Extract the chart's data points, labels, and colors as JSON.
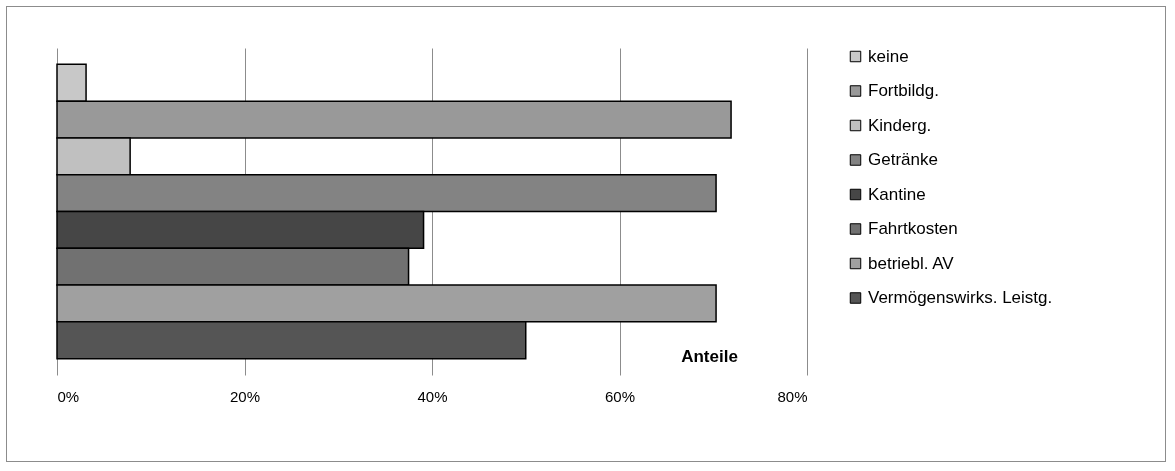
{
  "chart_data": {
    "type": "bar",
    "orientation": "horizontal",
    "categories": [
      null
    ],
    "series": [
      {
        "name": "keine",
        "color": "#c8c8c8",
        "values": [
          3.1
        ]
      },
      {
        "name": "Fortbildg.",
        "color": "#999999",
        "values": [
          71.9
        ]
      },
      {
        "name": "Kinderg.",
        "color": "#c0c0c0",
        "values": [
          7.8
        ]
      },
      {
        "name": "Getränke",
        "color": "#838383",
        "values": [
          70.3
        ]
      },
      {
        "name": "Kantine",
        "color": "#464646",
        "values": [
          39.1
        ]
      },
      {
        "name": "Fahrtkosten",
        "color": "#717171",
        "values": [
          37.5
        ]
      },
      {
        "name": "betriebl. AV",
        "color": "#a0a0a0",
        "values": [
          70.3
        ]
      },
      {
        "name": "Vermögenswirks. Leistg.",
        "color": "#555555",
        "values": [
          50.0
        ]
      }
    ],
    "xlim": [
      0,
      80
    ],
    "xticks": [
      {
        "value": 0,
        "label": "0%"
      },
      {
        "value": 20,
        "label": "20%"
      },
      {
        "value": 40,
        "label": "40%"
      },
      {
        "value": 60,
        "label": "60%"
      },
      {
        "value": 80,
        "label": "80%"
      }
    ],
    "grid": "x",
    "legend": "right",
    "annotations": [
      "Anteile"
    ]
  }
}
